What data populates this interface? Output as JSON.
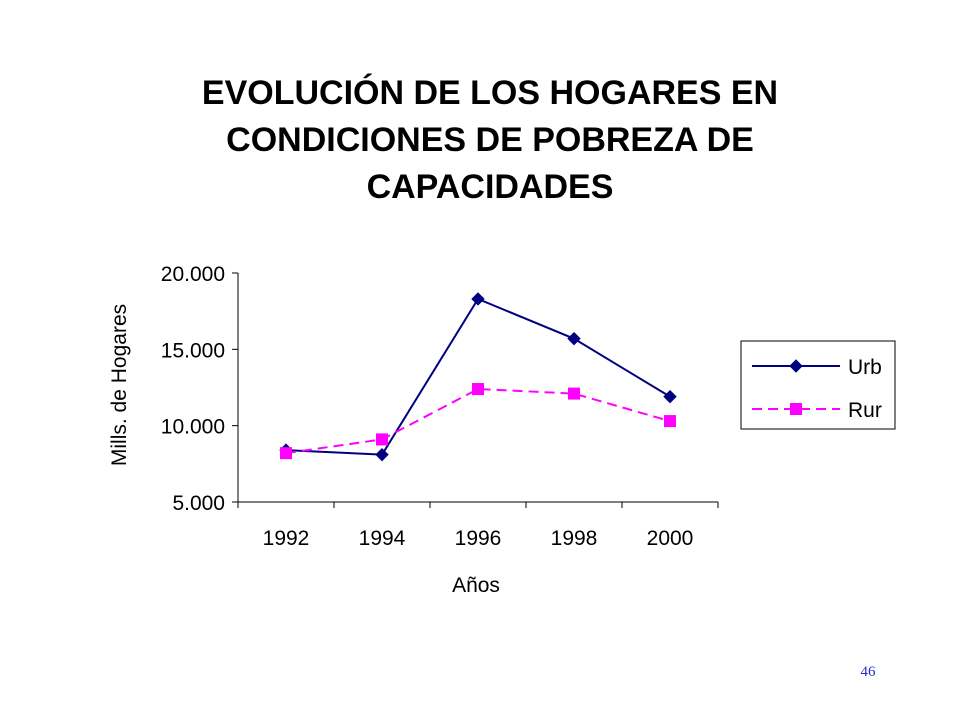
{
  "slide": {
    "title_lines": [
      "EVOLUCIÓN DE LOS HOGARES EN",
      "CONDICIONES DE POBREZA DE",
      "CAPACIDADES"
    ],
    "page_number": "46"
  },
  "chart_data": {
    "type": "line",
    "title": "EVOLUCIÓN DE LOS HOGARES EN CONDICIONES DE POBREZA DE CAPACIDADES",
    "xlabel": "Años",
    "ylabel": "Mills. de Hogares",
    "categories": [
      "1992",
      "1994",
      "1996",
      "1998",
      "2000"
    ],
    "y_ticks": [
      "20.000",
      "15.000",
      "10.000",
      "5.000"
    ],
    "ylim": [
      5000,
      20000
    ],
    "grid": false,
    "legend_position": "right",
    "series": [
      {
        "name": "Urb",
        "values": [
          8400,
          8100,
          18300,
          15700,
          11900
        ],
        "color": "#000080",
        "marker": "diamond",
        "line": "solid"
      },
      {
        "name": "Rur",
        "values": [
          8200,
          9100,
          12400,
          12100,
          10300
        ],
        "color": "#ff00ff",
        "marker": "square",
        "line": "dashed"
      }
    ]
  }
}
